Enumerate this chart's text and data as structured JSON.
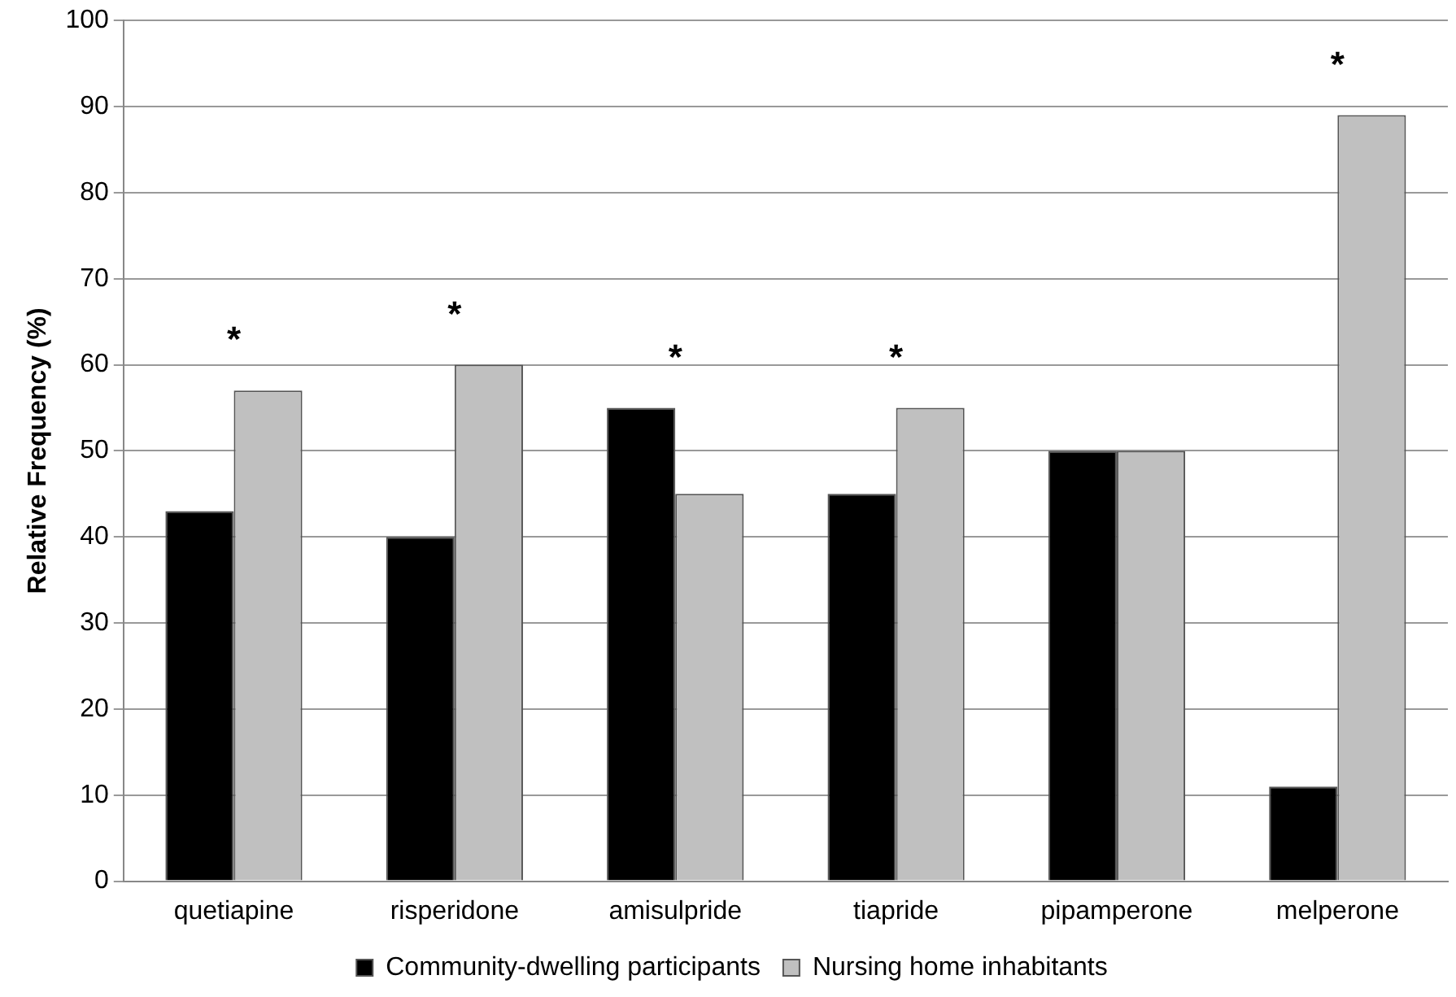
{
  "chart_data": {
    "type": "bar",
    "ylabel": "Relative Frequency (%)",
    "categories": [
      "quetiapine",
      "risperidone",
      "amisulpride",
      "tiapride",
      "pipamperone",
      "melperone"
    ],
    "series": [
      {
        "name": "Community-dwelling participants",
        "color": "#000000",
        "values": [
          43,
          40,
          55,
          45,
          50,
          11
        ]
      },
      {
        "name": "Nursing home inhabitants",
        "color": "#c0c0c0",
        "values": [
          57,
          60,
          45,
          55,
          50,
          89
        ]
      }
    ],
    "ylim": [
      0,
      100
    ],
    "yticks": [
      0,
      10,
      20,
      30,
      40,
      50,
      60,
      70,
      80,
      90,
      100
    ],
    "grid": "y",
    "legend": "bottom",
    "annotations": [
      {
        "text": "*",
        "x": "quetiapine",
        "y": 57
      },
      {
        "text": "*",
        "x": "risperidone",
        "y": 60
      },
      {
        "text": "*",
        "x": "amisulpride",
        "y": 55
      },
      {
        "text": "*",
        "x": "tiapride",
        "y": 55
      },
      {
        "text": "*",
        "x": "melperone",
        "y": 89
      }
    ]
  }
}
